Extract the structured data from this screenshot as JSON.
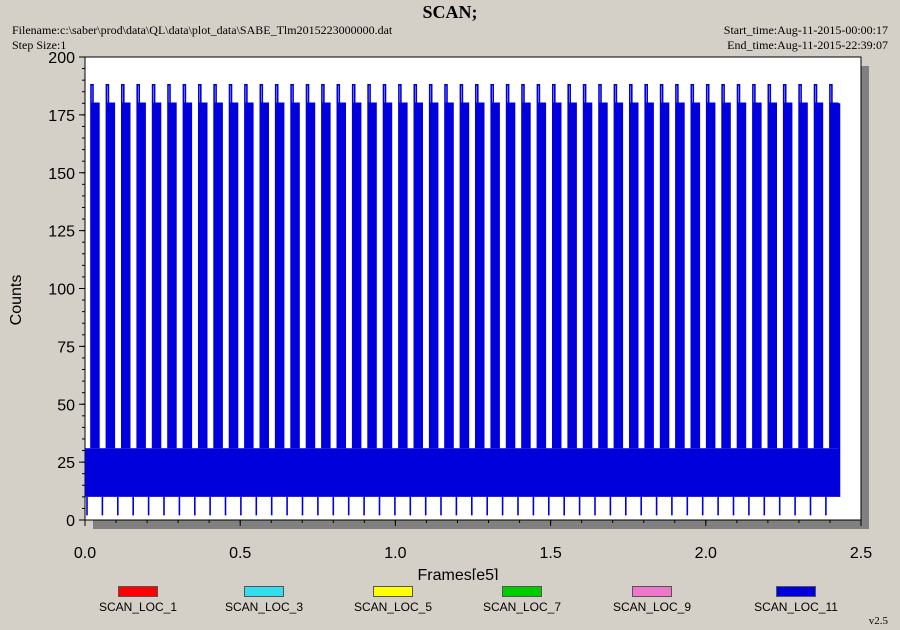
{
  "header": {
    "title": "SCAN;",
    "filename": "Filename:c:\\saber\\prod\\data\\QL\\data\\plot_data\\SABE_Tlm2015223000000.dat",
    "step_size": "Step Size:1",
    "start_time": "Start_time:Aug-11-2015-00:00:17",
    "end_time": "End_time:Aug-11-2015-22:39:07",
    "version": "v2.5"
  },
  "chart_data": {
    "type": "line",
    "title": "SCAN;",
    "xlabel": "Frames[e5]",
    "ylabel": "Counts",
    "xlim": [
      0.0,
      2.5
    ],
    "ylim": [
      0,
      200
    ],
    "x_ticks": [
      "0.0",
      "0.5",
      "1.0",
      "1.5",
      "2.0",
      "2.5"
    ],
    "y_ticks": [
      "0",
      "25",
      "50",
      "75",
      "100",
      "125",
      "150",
      "175",
      "200"
    ],
    "grid": false,
    "legend_position": "bottom",
    "series": [
      {
        "name": "SCAN_LOC_1",
        "color": "#ff0000"
      },
      {
        "name": "SCAN_LOC_3",
        "color": "#33ddee"
      },
      {
        "name": "SCAN_LOC_5",
        "color": "#ffff00"
      },
      {
        "name": "SCAN_LOC_7",
        "color": "#00cc00"
      },
      {
        "name": "SCAN_LOC_9",
        "color": "#ee77cc"
      },
      {
        "name": "SCAN_LOC_11",
        "color": "#0000dd",
        "x_range": [
          0.0,
          2.43
        ],
        "baseline_band": [
          10,
          31
        ],
        "peak_levels": [
          180,
          188
        ],
        "min_level": 2,
        "cycles": 49
      }
    ]
  }
}
